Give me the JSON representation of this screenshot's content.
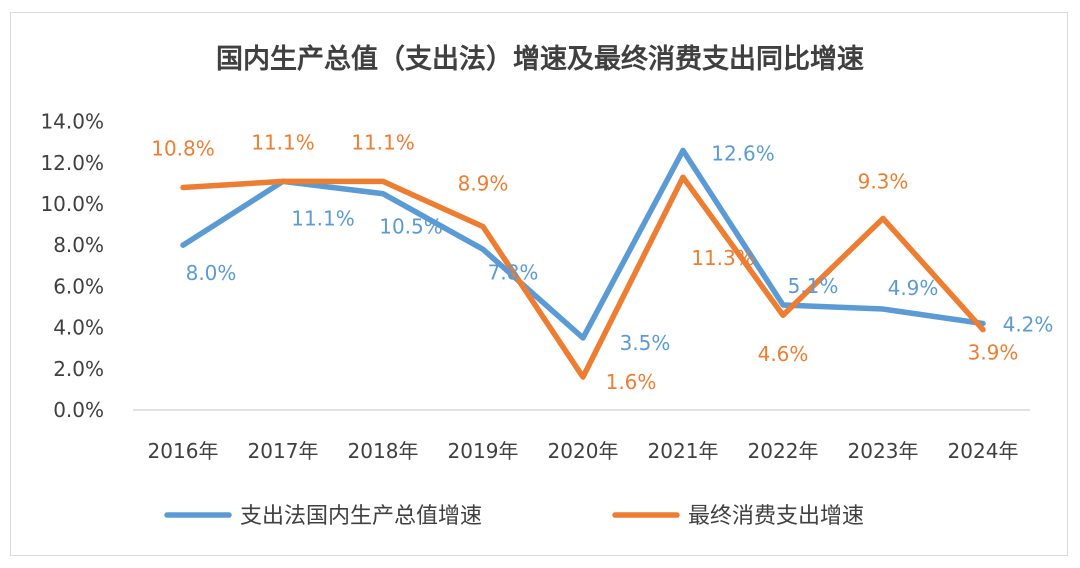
{
  "chart_data": {
    "type": "line",
    "title": "国内生产总值（支出法）增速及最终消费支出同比增速",
    "categories": [
      "2016年",
      "2017年",
      "2018年",
      "2019年",
      "2020年",
      "2021年",
      "2022年",
      "2023年",
      "2024年"
    ],
    "ylim": [
      0,
      14
    ],
    "y_ticks": [
      "0.0%",
      "2.0%",
      "4.0%",
      "6.0%",
      "8.0%",
      "10.0%",
      "12.0%",
      "14.0%"
    ],
    "grid": false,
    "legend_position": "bottom",
    "series": [
      {
        "name": "支出法国内生产总值增速",
        "color": "#5B9BD5",
        "values": [
          8.0,
          11.1,
          10.5,
          7.8,
          3.5,
          12.6,
          5.1,
          4.9,
          4.2
        ],
        "labels": [
          "8.0%",
          "11.1%",
          "10.5%",
          "7.8%",
          "3.5%",
          "12.6%",
          "5.1%",
          "4.9%",
          "4.2%"
        ]
      },
      {
        "name": "最终消费支出增速",
        "color": "#ED7D31",
        "values": [
          10.8,
          11.1,
          11.1,
          8.9,
          1.6,
          11.3,
          4.6,
          9.3,
          3.9
        ],
        "labels": [
          "10.8%",
          "11.1%",
          "11.1%",
          "8.9%",
          "1.6%",
          "11.3%",
          "4.6%",
          "9.3%",
          "3.9%"
        ]
      }
    ]
  }
}
